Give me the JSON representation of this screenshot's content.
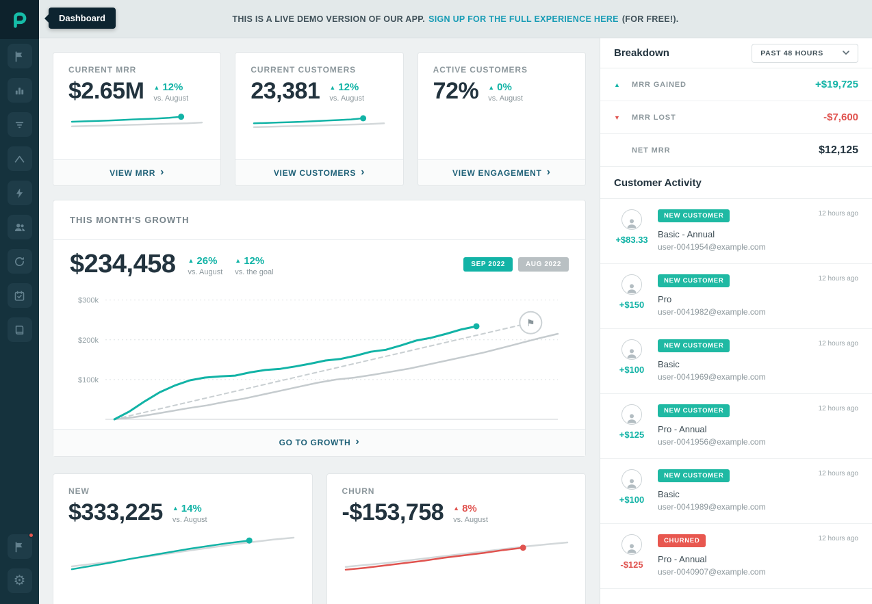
{
  "colors": {
    "teal": "#12b3a6",
    "red": "#e0534f",
    "navy": "#22333e",
    "sidebar": "#15323d",
    "gray_line": "#c5cbce"
  },
  "sidebar": {
    "tooltip": "Dashboard",
    "icons": [
      "flag",
      "bar-chart",
      "filter",
      "trend",
      "lightning",
      "users",
      "refresh",
      "calendar-check",
      "book"
    ],
    "bottom_icons": [
      "flag-notification",
      "gear"
    ]
  },
  "banner": {
    "text_bold": "THIS IS A LIVE DEMO VERSION OF OUR APP.",
    "link": "SIGN UP FOR THE FULL EXPERIENCE HERE",
    "suffix": "(FOR FREE!)."
  },
  "metric_cards": [
    {
      "title": "CURRENT MRR",
      "value": "$2.65M",
      "delta": "12%",
      "delta_dir": "up",
      "delta_note": "vs. August",
      "footer": "VIEW MRR",
      "spark": "mrr-spark"
    },
    {
      "title": "CURRENT CUSTOMERS",
      "value": "23,381",
      "delta": "12%",
      "delta_dir": "up",
      "delta_note": "vs. August",
      "footer": "VIEW CUSTOMERS",
      "spark": "customers-spark"
    },
    {
      "title": "ACTIVE CUSTOMERS",
      "value": "72%",
      "delta": "0%",
      "delta_dir": "up",
      "delta_note": "vs. August",
      "footer": "VIEW ENGAGEMENT",
      "spark": null
    }
  ],
  "growth": {
    "title": "THIS MONTH'S GROWTH",
    "value": "$234,458",
    "delta1": {
      "pct": "26%",
      "note": "vs. August"
    },
    "delta2": {
      "pct": "12%",
      "note": "vs. the goal"
    },
    "legend": [
      {
        "label": "SEP 2022",
        "color": "teal"
      },
      {
        "label": "AUG 2022",
        "color": "gray"
      }
    ],
    "footer": "GO TO GROWTH"
  },
  "bottom_cards": [
    {
      "title": "NEW",
      "value": "$333,225",
      "delta": "14%",
      "delta_dir": "up",
      "delta_note": "vs. August",
      "spark": "new-spark"
    },
    {
      "title": "CHURN",
      "value": "-$153,758",
      "delta": "8%",
      "delta_dir": "up-red",
      "delta_note": "vs. August",
      "spark": "churn-spark"
    }
  ],
  "breakdown": {
    "title": "Breakdown",
    "range_selector": "PAST 48 HOURS",
    "rows": [
      {
        "label": "MRR GAINED",
        "value": "+$19,725",
        "dir": "up",
        "value_color": "teal"
      },
      {
        "label": "MRR LOST",
        "value": "-$7,600",
        "dir": "down",
        "value_color": "red"
      },
      {
        "label": "NET MRR",
        "value": "$12,125",
        "dir": "none",
        "value_color": "dark"
      }
    ]
  },
  "activity": {
    "title": "Customer Activity",
    "items": [
      {
        "amount": "+$83.33",
        "amount_color": "teal",
        "badge": "NEW CUSTOMER",
        "badge_color": "teal",
        "plan": "Basic - Annual",
        "email": "user-0041954@example.com",
        "time": "12 hours ago"
      },
      {
        "amount": "+$150",
        "amount_color": "teal",
        "badge": "NEW CUSTOMER",
        "badge_color": "teal",
        "plan": "Pro",
        "email": "user-0041982@example.com",
        "time": "12 hours ago"
      },
      {
        "amount": "+$100",
        "amount_color": "teal",
        "badge": "NEW CUSTOMER",
        "badge_color": "teal",
        "plan": "Basic",
        "email": "user-0041969@example.com",
        "time": "12 hours ago"
      },
      {
        "amount": "+$125",
        "amount_color": "teal",
        "badge": "NEW CUSTOMER",
        "badge_color": "teal",
        "plan": "Pro - Annual",
        "email": "user-0041956@example.com",
        "time": "12 hours ago"
      },
      {
        "amount": "+$100",
        "amount_color": "teal",
        "badge": "NEW CUSTOMER",
        "badge_color": "teal",
        "plan": "Basic",
        "email": "user-0041989@example.com",
        "time": "12 hours ago"
      },
      {
        "amount": "-$125",
        "amount_color": "red",
        "badge": "CHURNED",
        "badge_color": "red",
        "plan": "Pro - Annual",
        "email": "user-0040907@example.com",
        "time": "12 hours ago"
      }
    ]
  },
  "chart_data": [
    {
      "id": "mrr-spark",
      "type": "line",
      "ymax": 60,
      "series": [
        {
          "name": "previous-period",
          "color": "#d3d8da",
          "width": 2.5,
          "values": [
            18,
            19,
            20,
            21,
            22,
            23,
            24,
            25,
            26,
            28
          ]
        },
        {
          "name": "current-period",
          "color": "#12b3a6",
          "width": 2.5,
          "end_frac": 0.84,
          "end_dot": true,
          "values": [
            30,
            31,
            32,
            33,
            34.5,
            36,
            37,
            38.5,
            40,
            43
          ]
        }
      ]
    },
    {
      "id": "customers-spark",
      "type": "line",
      "ymax": 60,
      "series": [
        {
          "name": "previous-period",
          "color": "#d3d8da",
          "width": 2.5,
          "values": [
            16,
            17,
            18,
            19,
            20,
            21,
            22,
            23,
            24,
            26
          ]
        },
        {
          "name": "current-period",
          "color": "#12b3a6",
          "width": 2.5,
          "end_frac": 0.84,
          "end_dot": true,
          "values": [
            26,
            27,
            28,
            29,
            30,
            31.5,
            33,
            34.5,
            36,
            39
          ]
        }
      ]
    },
    {
      "id": "growth",
      "type": "line",
      "ymax": 320,
      "yticks": [
        {
          "value": 100,
          "label": "$100k"
        },
        {
          "value": 200,
          "label": "$200k"
        },
        {
          "value": 300,
          "label": "$300k"
        }
      ],
      "series": [
        {
          "name": "goal",
          "color": "#c9cfd2",
          "width": 2,
          "dash": "6 5",
          "start_frac": 0.02,
          "end_frac": 0.94,
          "marker": "flag",
          "values": [
            0,
            243
          ]
        },
        {
          "name": "aug-2022",
          "color": "#c5cbce",
          "width": 2.5,
          "start_frac": 0.02,
          "values": [
            0,
            5,
            12,
            20,
            28,
            35,
            44,
            52,
            62,
            72,
            82,
            92,
            100,
            105,
            112,
            120,
            128,
            138,
            148,
            158,
            168,
            180,
            192,
            204,
            215
          ]
        },
        {
          "name": "sep-2022",
          "color": "#12b3a6",
          "width": 3,
          "start_frac": 0.02,
          "end_frac": 0.82,
          "end_dot": true,
          "values": [
            0,
            20,
            45,
            68,
            85,
            98,
            105,
            108,
            110,
            118,
            124,
            127,
            133,
            140,
            148,
            152,
            160,
            170,
            175,
            186,
            198,
            205,
            215,
            226,
            234
          ]
        }
      ]
    },
    {
      "id": "new-spark",
      "type": "line",
      "ymax": 80,
      "series": [
        {
          "name": "previous-period",
          "color": "#d3d8da",
          "width": 2.5,
          "values": [
            10,
            15,
            20,
            26,
            32,
            38,
            44,
            50,
            56,
            61,
            66,
            70
          ]
        },
        {
          "name": "current-period",
          "color": "#12b3a6",
          "width": 2.5,
          "end_frac": 0.8,
          "end_dot": true,
          "values": [
            4,
            11,
            18,
            26,
            33,
            40,
            47,
            53,
            59,
            64
          ]
        }
      ]
    },
    {
      "id": "churn-spark",
      "type": "line",
      "ymax": 80,
      "series": [
        {
          "name": "previous-period",
          "color": "#d3d8da",
          "width": 2.5,
          "values": [
            9,
            13,
            17,
            22,
            27,
            32,
            37,
            42,
            47,
            52,
            56,
            60
          ]
        },
        {
          "name": "current-period",
          "color": "#e0534f",
          "width": 2.5,
          "end_frac": 0.8,
          "end_dot": true,
          "values": [
            3,
            7,
            12,
            17,
            22,
            28,
            33,
            38,
            44,
            49
          ]
        }
      ]
    }
  ]
}
